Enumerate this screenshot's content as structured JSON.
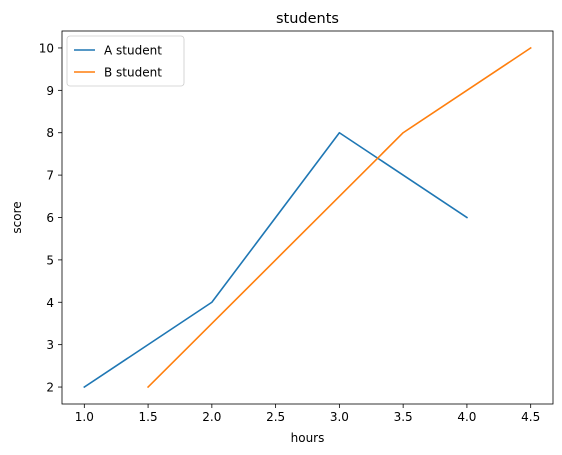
{
  "chart_data": {
    "type": "line",
    "title": "students",
    "xlabel": "hours",
    "ylabel": "score",
    "xlim": [
      0.825,
      4.675
    ],
    "ylim": [
      1.6,
      10.4
    ],
    "xticks": [
      1.0,
      1.5,
      2.0,
      2.5,
      3.0,
      3.5,
      4.0,
      4.5
    ],
    "xtick_labels": [
      "1.0",
      "1.5",
      "2.0",
      "2.5",
      "3.0",
      "3.5",
      "4.0",
      "4.5"
    ],
    "yticks": [
      2,
      3,
      4,
      5,
      6,
      7,
      8,
      9,
      10
    ],
    "ytick_labels": [
      "2",
      "3",
      "4",
      "5",
      "6",
      "7",
      "8",
      "9",
      "10"
    ],
    "grid": false,
    "legend_position": "top-left",
    "series": [
      {
        "name": "A student",
        "color": "#1f77b4",
        "x": [
          1.0,
          2.0,
          3.0,
          4.0
        ],
        "y": [
          2,
          4,
          8,
          6
        ]
      },
      {
        "name": "B student",
        "color": "#ff7f0e",
        "x": [
          1.5,
          2.5,
          3.5,
          4.5
        ],
        "y": [
          2,
          5,
          8,
          10
        ]
      }
    ]
  }
}
